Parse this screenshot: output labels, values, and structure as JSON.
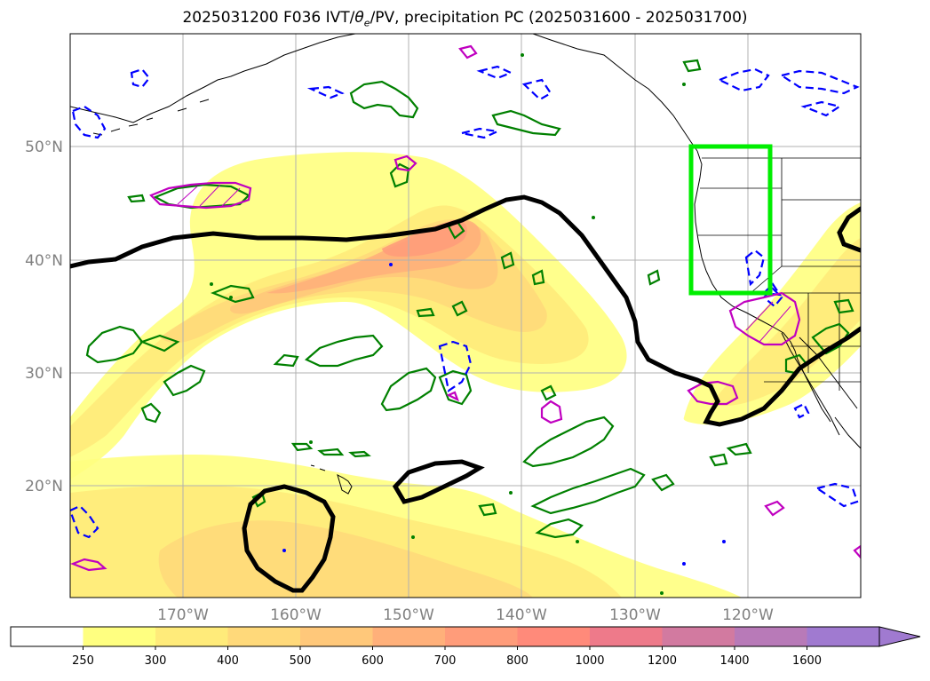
{
  "title": {
    "prefix": "2025031200 F036 IVT/",
    "theta": "θ",
    "theta_sub": "e",
    "suffix": "/PV, precipitation PC (2025031600 - 2025031700)"
  },
  "map": {
    "projection": "PlateCarree",
    "lon_range": [
      -180,
      -110
    ],
    "lat_range": [
      10,
      60
    ],
    "lat_ticks": [
      {
        "value": 20,
        "label": "20°N"
      },
      {
        "value": 30,
        "label": "30°N"
      },
      {
        "value": 40,
        "label": "40°N"
      },
      {
        "value": 50,
        "label": "50°N"
      }
    ],
    "lon_ticks": [
      {
        "value": -170,
        "label": "170°W"
      },
      {
        "value": -160,
        "label": "160°W"
      },
      {
        "value": -150,
        "label": "150°W"
      },
      {
        "value": -140,
        "label": "140°W"
      },
      {
        "value": -130,
        "label": "130°W"
      },
      {
        "value": -120,
        "label": "120°W"
      }
    ],
    "gridlines": true,
    "highlight_box": {
      "lon": [
        -125,
        -118
      ],
      "lat": [
        37,
        50
      ],
      "color": "#00ee00"
    }
  },
  "colorbar": {
    "levels": [
      "250",
      "300",
      "400",
      "500",
      "600",
      "700",
      "800",
      "1000",
      "1200",
      "1400",
      "1600"
    ],
    "colors": [
      "#ffffff",
      "#ffff80",
      "#ffeb7a",
      "#ffd97a",
      "#ffc87a",
      "#ffb07a",
      "#ff9c7a",
      "#ff8a7a",
      "#ee7a8a",
      "#d27aa0",
      "#b87ab8",
      "#a07ad0"
    ],
    "extend": "max"
  },
  "colors": {
    "pv_contour": "#000000",
    "theta_e_positive": "#008000",
    "theta_e_negative": "#0000ff",
    "precip_contour": "#c000c0",
    "grid": "#b0b0b0"
  }
}
